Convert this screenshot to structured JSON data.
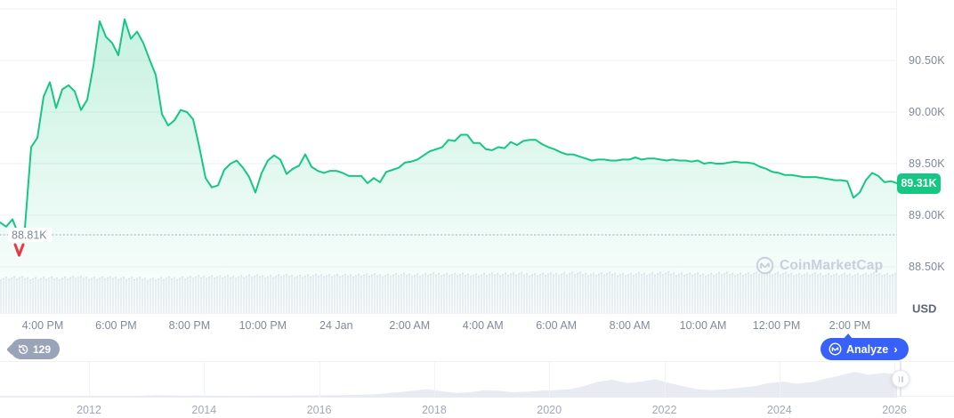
{
  "colors": {
    "line_green": "#16c784",
    "marker_red": "#ea3943",
    "analyze_blue": "#3861fb",
    "grid": "#f0f2f6",
    "axis_text": "#7f8a9d",
    "muted_text": "#a0a8ba",
    "volume_bar": "#edf0f5",
    "volume_cap": "#e0e5ee",
    "history_fill": "#e8ebf1",
    "watermark": "#c9d0dd",
    "badge_gray": "#9aa4b8"
  },
  "watermark": {
    "text": "CoinMarketCap"
  },
  "toolbar": {
    "history_count": "129",
    "analyze_label": "Analyze",
    "analyze_chevron": "›"
  },
  "chart_data": [
    {
      "type": "area",
      "name": "intraday-price",
      "unit_k_usd": true,
      "current_price_label": "89.31K",
      "current_price_value": 89.31,
      "low_marker": {
        "label": "88.81K",
        "value": 88.81
      },
      "y_axis": {
        "unit": "USD",
        "grid_values": [
          91.0,
          90.5,
          90.0,
          89.5,
          89.0,
          88.5
        ],
        "ticks": [
          {
            "label": "90.50K",
            "value": 90.5
          },
          {
            "label": "90.00K",
            "value": 90.0
          },
          {
            "label": "89.50K",
            "value": 89.5
          },
          {
            "label": "89.00K",
            "value": 89.0
          },
          {
            "label": "88.50K",
            "value": 88.5
          }
        ]
      },
      "x_axis": {
        "ticks": [
          "4:00 PM",
          "6:00 PM",
          "8:00 PM",
          "10:00 PM",
          "24 Jan",
          "2:00 AM",
          "4:00 AM",
          "6:00 AM",
          "8:00 AM",
          "10:00 AM",
          "12:00 PM",
          "2:00 PM"
        ]
      },
      "prices_k": [
        88.93,
        88.89,
        88.96,
        88.81,
        88.88,
        89.66,
        89.75,
        90.15,
        90.29,
        90.04,
        90.22,
        90.26,
        90.2,
        90.02,
        90.12,
        90.45,
        90.88,
        90.73,
        90.67,
        90.55,
        90.9,
        90.71,
        90.78,
        90.67,
        90.51,
        90.36,
        89.98,
        89.87,
        89.92,
        90.02,
        90.0,
        89.93,
        89.66,
        89.36,
        89.27,
        89.29,
        89.44,
        89.5,
        89.53,
        89.46,
        89.37,
        89.22,
        89.41,
        89.53,
        89.58,
        89.54,
        89.4,
        89.45,
        89.48,
        89.59,
        89.47,
        89.43,
        89.41,
        89.43,
        89.43,
        89.41,
        89.38,
        89.38,
        89.38,
        89.31,
        89.36,
        89.32,
        89.42,
        89.44,
        89.46,
        89.51,
        89.52,
        89.54,
        89.58,
        89.62,
        89.64,
        89.66,
        89.73,
        89.72,
        89.78,
        89.78,
        89.7,
        89.7,
        89.64,
        89.63,
        89.66,
        89.65,
        89.71,
        89.68,
        89.72,
        89.73,
        89.73,
        89.69,
        89.66,
        89.64,
        89.61,
        89.59,
        89.59,
        89.57,
        89.55,
        89.53,
        89.54,
        89.54,
        89.53,
        89.53,
        89.54,
        89.54,
        89.56,
        89.54,
        89.55,
        89.55,
        89.54,
        89.53,
        89.54,
        89.53,
        89.53,
        89.52,
        89.53,
        89.5,
        89.51,
        89.5,
        89.5,
        89.51,
        89.52,
        89.51,
        89.51,
        89.5,
        89.47,
        89.45,
        89.42,
        89.41,
        89.39,
        89.39,
        89.38,
        89.37,
        89.37,
        89.37,
        89.36,
        89.35,
        89.34,
        89.34,
        89.33,
        89.17,
        89.22,
        89.34,
        89.41,
        89.38,
        89.32,
        89.33,
        89.31
      ],
      "volume_profile": [
        0.86,
        0.87,
        0.85,
        0.86,
        0.88,
        0.86,
        0.87,
        0.85,
        0.84,
        0.86,
        0.88,
        0.9,
        0.89,
        0.91,
        0.9,
        0.92,
        0.91,
        0.93,
        0.92,
        0.94,
        0.93,
        0.95,
        0.94,
        0.96,
        0.95,
        0.94,
        0.96,
        0.97,
        0.95,
        0.96,
        0.98,
        0.96,
        0.97,
        0.95,
        0.97,
        0.98,
        0.96,
        0.95,
        0.97,
        0.96,
        0.98,
        0.97,
        0.95,
        0.96,
        0.94,
        0.95,
        0.96,
        0.95
      ]
    },
    {
      "type": "area",
      "name": "all-time-history",
      "year_ticks": [
        "2012",
        "2014",
        "2016",
        "2018",
        "2020",
        "2022",
        "2024",
        "2026"
      ],
      "values_rel": [
        0.02,
        0.02,
        0.02,
        0.02,
        0.02,
        0.02,
        0.02,
        0.03,
        0.03,
        0.03,
        0.04,
        0.06,
        0.05,
        0.04,
        0.05,
        0.04,
        0.03,
        0.03,
        0.04,
        0.04,
        0.04,
        0.05,
        0.05,
        0.06,
        0.06,
        0.07,
        0.09,
        0.13,
        0.18,
        0.24,
        0.3,
        0.22,
        0.15,
        0.18,
        0.26,
        0.24,
        0.18,
        0.2,
        0.24,
        0.26,
        0.3,
        0.42,
        0.6,
        0.68,
        0.55,
        0.6,
        0.7,
        0.55,
        0.42,
        0.3,
        0.26,
        0.3,
        0.36,
        0.42,
        0.55,
        0.6,
        0.52,
        0.58,
        0.72,
        0.85,
        1.0,
        0.88,
        0.95,
        0.9
      ]
    }
  ]
}
